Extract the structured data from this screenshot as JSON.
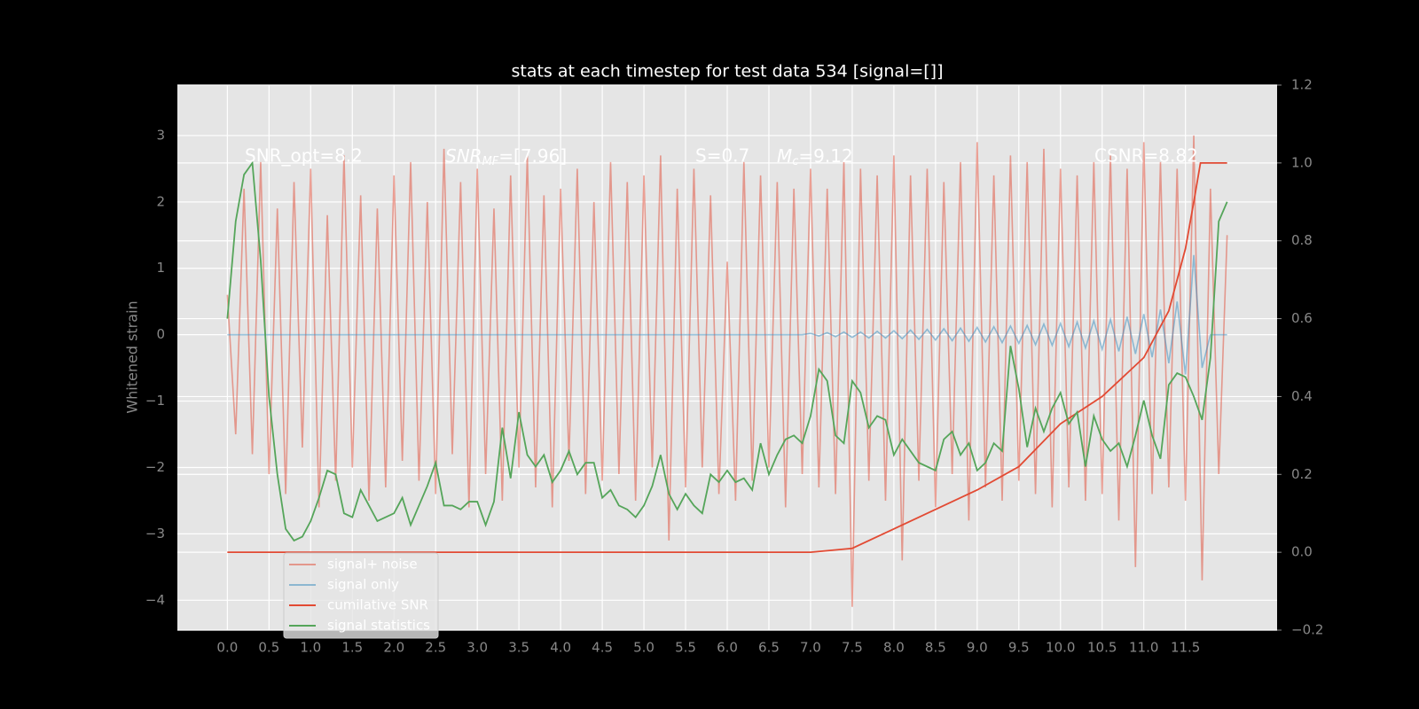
{
  "chart_data": {
    "type": "line",
    "title": "stats at each timestep for test data 534 [signal=[]]",
    "ylabel": "Whitened strain",
    "annotations": [
      "SNR_opt=8.2",
      {
        "base": "SNR",
        "sub": "MF",
        "text": "=[7.96]"
      },
      "S=0.7",
      {
        "base": "M",
        "sub": "c",
        "text": "=9.12"
      },
      "CSNR=8.82"
    ],
    "grid": true,
    "legend": "lower left",
    "xlim": [
      -0.6,
      12.6
    ],
    "ylim": [
      -4.45,
      3.76
    ],
    "y2lim": [
      -0.2,
      1.2
    ],
    "xticks": [
      {
        "value": 0,
        "label": "0.0"
      },
      0.5,
      {
        "value": 1,
        "label": "1.0"
      },
      1.5,
      {
        "value": 2,
        "label": "2.0"
      },
      2.5,
      {
        "value": 3,
        "label": "3.0"
      },
      3.5,
      {
        "value": 4,
        "label": "4.0"
      },
      4.5,
      {
        "value": 5,
        "label": "5.0"
      },
      5.5,
      {
        "value": 6,
        "label": "6.0"
      },
      6.5,
      {
        "value": 7,
        "label": "7.0"
      },
      7.5,
      {
        "value": 8,
        "label": "8.0"
      },
      8.5,
      {
        "value": 9,
        "label": "9.0"
      },
      9.5,
      {
        "value": 10,
        "label": "10.0"
      },
      10.5,
      {
        "value": 11,
        "label": "11.0"
      },
      11.5
    ],
    "yticks": [
      {
        "value": -4,
        "label": "−4"
      },
      {
        "value": -3,
        "label": "−3"
      },
      {
        "value": -2,
        "label": "−2"
      },
      {
        "value": -1,
        "label": "−1"
      },
      0,
      1,
      2,
      3
    ],
    "y2ticks": [
      {
        "value": -0.2,
        "label": "−0.2"
      },
      {
        "value": 0,
        "label": "0.0"
      },
      0.2,
      0.4,
      0.6,
      0.8,
      {
        "value": 1,
        "label": "1.0"
      },
      1.2
    ],
    "x": [
      0,
      0.1,
      0.2,
      0.3,
      0.4,
      0.5,
      0.6,
      0.7,
      0.8,
      0.9,
      1,
      1.1,
      1.2,
      1.3,
      1.4,
      1.5,
      1.6,
      1.7,
      1.8,
      1.9,
      2,
      2.1,
      2.2,
      2.3,
      2.4,
      2.5,
      2.6,
      2.7,
      2.8,
      2.9,
      3,
      3.1,
      3.2,
      3.3,
      3.4,
      3.5,
      3.6,
      3.7,
      3.8,
      3.9,
      4,
      4.1,
      4.2,
      4.3,
      4.4,
      4.5,
      4.6,
      4.7,
      4.8,
      4.9,
      5,
      5.1,
      5.2,
      5.3,
      5.4,
      5.5,
      5.6,
      5.7,
      5.8,
      5.9,
      6,
      6.1,
      6.2,
      6.3,
      6.4,
      6.5,
      6.6,
      6.7,
      6.8,
      6.9,
      7,
      7.1,
      7.2,
      7.3,
      7.4,
      7.5,
      7.6,
      7.7,
      7.8,
      7.9,
      8,
      8.1,
      8.2,
      8.3,
      8.4,
      8.5,
      8.6,
      8.7,
      8.8,
      8.9,
      9,
      9.1,
      9.2,
      9.3,
      9.4,
      9.5,
      9.6,
      9.7,
      9.8,
      9.9,
      10,
      10.1,
      10.2,
      10.3,
      10.4,
      10.5,
      10.6,
      10.7,
      10.8,
      10.9,
      11,
      11.1,
      11.2,
      11.3,
      11.4,
      11.5,
      11.6,
      11.7,
      11.8,
      11.9,
      12
    ],
    "series": [
      {
        "name": "signal+ noise",
        "color": "#e24a33",
        "alpha": 0.5,
        "values": [
          0.6,
          -1.5,
          2.2,
          -1.8,
          2.6,
          -2.1,
          1.9,
          -2.4,
          2.3,
          -1.7,
          2.5,
          -2.6,
          1.8,
          -2.2,
          2.7,
          -2.0,
          2.1,
          -2.5,
          1.9,
          -2.3,
          2.4,
          -1.9,
          2.6,
          -2.2,
          2.0,
          -2.4,
          2.8,
          -1.8,
          2.3,
          -2.6,
          2.5,
          -2.1,
          1.9,
          -2.5,
          2.4,
          -2.0,
          2.7,
          -2.3,
          2.1,
          -2.6,
          2.2,
          -1.9,
          2.5,
          -2.4,
          2.0,
          -2.2,
          2.6,
          -2.1,
          2.3,
          -2.5,
          2.4,
          -2.0,
          2.7,
          -3.1,
          2.2,
          -2.3,
          2.5,
          -2.0,
          2.1,
          -2.4,
          1.1,
          -2.5,
          2.6,
          -2.2,
          2.4,
          -2.0,
          2.3,
          -2.6,
          2.2,
          -2.1,
          2.5,
          -2.3,
          2.2,
          -2.4,
          2.6,
          -4.1,
          2.5,
          -2.2,
          2.4,
          -2.5,
          2.7,
          -3.4,
          2.4,
          -2.2,
          2.5,
          -2.6,
          2.3,
          -2.1,
          2.6,
          -2.8,
          2.9,
          -2.3,
          2.4,
          -2.5,
          2.7,
          -2.2,
          2.6,
          -2.4,
          2.8,
          -2.6,
          2.5,
          -2.3,
          2.4,
          -2.5,
          2.6,
          -2.4,
          2.7,
          -2.8,
          2.5,
          -3.5,
          2.9,
          -2.4,
          2.6,
          -2.3,
          2.5,
          -2.5,
          3.0,
          -3.7,
          2.2,
          -2.1,
          1.5
        ]
      },
      {
        "name": "signal only",
        "color": "#348abd",
        "alpha": 0.5,
        "values": [
          0,
          0,
          0,
          0,
          0,
          0,
          0,
          0,
          0,
          0,
          0,
          0,
          0,
          0,
          0,
          0,
          0,
          0,
          0,
          0,
          0,
          0,
          0,
          0,
          0,
          0,
          0,
          0,
          0,
          0,
          0,
          0,
          0,
          0,
          0,
          0,
          0,
          0,
          0,
          0,
          0,
          0,
          0,
          0,
          0,
          0,
          0,
          0,
          0,
          0,
          0,
          0,
          0,
          0,
          0,
          0,
          0,
          0,
          0,
          0,
          0,
          0,
          0,
          0,
          0,
          0,
          0,
          0,
          0,
          0,
          0.02,
          -0.02,
          0.03,
          -0.03,
          0.04,
          -0.04,
          0.04,
          -0.05,
          0.05,
          -0.05,
          0.06,
          -0.06,
          0.07,
          -0.07,
          0.08,
          -0.08,
          0.09,
          -0.09,
          0.1,
          -0.1,
          0.11,
          -0.11,
          0.12,
          -0.12,
          0.13,
          -0.13,
          0.14,
          -0.15,
          0.16,
          -0.16,
          0.17,
          -0.18,
          0.19,
          -0.2,
          0.21,
          -0.22,
          0.23,
          -0.25,
          0.27,
          -0.29,
          0.31,
          -0.34,
          0.38,
          -0.43,
          0.5,
          -0.6,
          1.2,
          -0.5,
          0,
          0,
          0
        ]
      },
      {
        "name": "cumilative SNR",
        "color": "#e24a33",
        "axis": "y2",
        "x": [
          0,
          7,
          7.5,
          8,
          8.5,
          9,
          9.5,
          10,
          10.5,
          11,
          11.3,
          11.5,
          11.6,
          11.68,
          12
        ],
        "values": [
          0,
          0,
          0.01,
          0.06,
          0.11,
          0.16,
          0.22,
          0.33,
          0.4,
          0.5,
          0.62,
          0.78,
          0.9,
          1,
          1
        ]
      },
      {
        "name": "signal statistics",
        "color": "#55a55a",
        "axis": "y2",
        "values": [
          0.6,
          0.85,
          0.97,
          1.0,
          0.75,
          0.4,
          0.2,
          0.06,
          0.03,
          0.04,
          0.08,
          0.14,
          0.21,
          0.2,
          0.1,
          0.09,
          0.16,
          0.12,
          0.08,
          0.09,
          0.1,
          0.14,
          0.07,
          0.12,
          0.17,
          0.23,
          0.12,
          0.12,
          0.11,
          0.13,
          0.13,
          0.07,
          0.13,
          0.32,
          0.19,
          0.36,
          0.25,
          0.22,
          0.25,
          0.18,
          0.21,
          0.26,
          0.2,
          0.23,
          0.23,
          0.14,
          0.16,
          0.12,
          0.11,
          0.09,
          0.12,
          0.17,
          0.25,
          0.15,
          0.11,
          0.15,
          0.12,
          0.1,
          0.2,
          0.18,
          0.21,
          0.18,
          0.19,
          0.16,
          0.28,
          0.2,
          0.25,
          0.29,
          0.3,
          0.28,
          0.35,
          0.47,
          0.44,
          0.3,
          0.28,
          0.44,
          0.41,
          0.32,
          0.35,
          0.34,
          0.25,
          0.29,
          0.26,
          0.23,
          0.22,
          0.21,
          0.29,
          0.31,
          0.25,
          0.28,
          0.21,
          0.23,
          0.28,
          0.26,
          0.53,
          0.42,
          0.27,
          0.37,
          0.31,
          0.37,
          0.41,
          0.33,
          0.36,
          0.22,
          0.35,
          0.29,
          0.26,
          0.28,
          0.22,
          0.3,
          0.39,
          0.3,
          0.24,
          0.43,
          0.46,
          0.45,
          0.4,
          0.34,
          0.5,
          0.85,
          0.9
        ]
      }
    ]
  }
}
